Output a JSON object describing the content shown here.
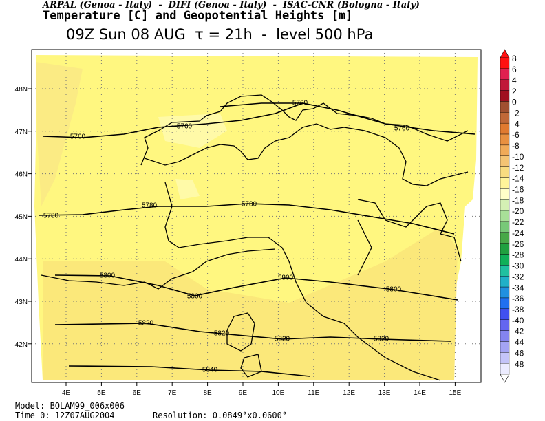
{
  "header": {
    "credits": "ARPAL (Genoa - Italy)  -  DIFI (Genoa - Italy)  -  ISAC-CNR (Bologna - Italy)",
    "title": "Temperature [C] and Geopotential Heights [m]",
    "subtitle": "09Z Sun 08 AUG  τ = 21h  -  level 500 hPa"
  },
  "map": {
    "lon_labels": [
      "4E",
      "5E",
      "6E",
      "7E",
      "8E",
      "9E",
      "10E",
      "11E",
      "12E",
      "13E",
      "14E",
      "15E"
    ],
    "lat_labels": [
      "48N",
      "47N",
      "46N",
      "45N",
      "44N",
      "43N",
      "42N"
    ],
    "contour_labels": [
      "5760",
      "5760",
      "5760",
      "5760",
      "5780",
      "5780",
      "5780",
      "5800",
      "5800",
      "5800",
      "5800",
      "5820",
      "5820",
      "5820",
      "5820",
      "5840"
    ]
  },
  "colorbar": {
    "levels": [
      8,
      6,
      4,
      2,
      0,
      -2,
      -4,
      -6,
      -8,
      -10,
      -12,
      -14,
      -16,
      -18,
      -20,
      -22,
      -24,
      -26,
      -28,
      -30,
      -32,
      -34,
      -36,
      -38,
      -40,
      -42,
      -44,
      -46,
      -48
    ],
    "colors": [
      "#ff1010",
      "#e02050",
      "#c01838",
      "#a01020",
      "#a05030",
      "#c06838",
      "#e07a30",
      "#e89040",
      "#f0aa58",
      "#f4c474",
      "#f8dc80",
      "#fff49a",
      "#ffffc8",
      "#d4f0b4",
      "#a8e098",
      "#78c878",
      "#48a848",
      "#20a040",
      "#10b058",
      "#20c0a0",
      "#20b0c8",
      "#2090e0",
      "#2070f0",
      "#4050f0",
      "#6466f0",
      "#8484f0",
      "#a4a4f4",
      "#c4c4f8",
      "#ececff"
    ]
  },
  "footer": {
    "model": "Model: BOLAM99_006x006",
    "time": "Time 0: 12Z07AUG2004",
    "resolution": "Resolution: 0.0849°x0.0600°"
  }
}
